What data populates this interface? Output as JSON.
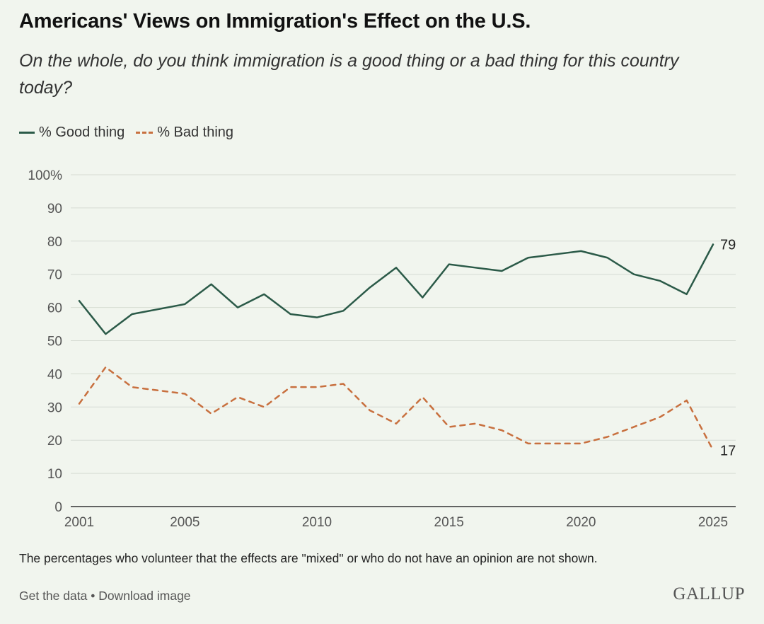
{
  "header": {
    "title": "Americans' Views on Immigration's Effect on the U.S.",
    "subtitle": "On the whole, do you think immigration is a good thing or a bad thing for this country today?"
  },
  "legend": {
    "good": "% Good thing",
    "bad": "% Bad thing"
  },
  "footer": {
    "note": "The percentages who volunteer that the effects are \"mixed\" or who do not have an opinion are not shown.",
    "get_data": "Get the data",
    "separator": " • ",
    "download": "Download image",
    "brand": "GALLUP"
  },
  "colors": {
    "good": "#2b5a48",
    "bad": "#c8703f",
    "grid": "#d6dcd3",
    "axis": "#333333",
    "tick_text": "#555555"
  },
  "chart_data": {
    "type": "line",
    "x_label": "",
    "y_label": "",
    "xlim": [
      2001,
      2025.5
    ],
    "ylim": [
      0,
      100
    ],
    "x_ticks": [
      2001,
      2005,
      2010,
      2015,
      2020,
      2025
    ],
    "y_ticks": [
      0,
      10,
      20,
      30,
      40,
      50,
      60,
      70,
      80,
      90,
      100
    ],
    "y_tick_labels": [
      "0",
      "10",
      "20",
      "30",
      "40",
      "50",
      "60",
      "70",
      "80",
      "90",
      "100%"
    ],
    "grid": true,
    "legend_position": "top-left",
    "x": [
      2001.5,
      2002.5,
      2003.5,
      2005.5,
      2006.5,
      2007.5,
      2008.5,
      2009.5,
      2010.5,
      2011.5,
      2012.5,
      2013.5,
      2014.5,
      2015.5,
      2016.5,
      2017.5,
      2018.5,
      2019.5,
      2020.5,
      2021.5,
      2022.5,
      2023.5,
      2024.5,
      2025.5
    ],
    "series": [
      {
        "name": "% Good thing",
        "style": "solid",
        "values": [
          62,
          52,
          58,
          61,
          67,
          60,
          64,
          58,
          57,
          59,
          66,
          72,
          63,
          73,
          72,
          71,
          75,
          76,
          77,
          75,
          70,
          68,
          64,
          79
        ],
        "end_label": "79"
      },
      {
        "name": "% Bad thing",
        "style": "dashed",
        "values": [
          31,
          42,
          36,
          34,
          28,
          33,
          30,
          36,
          36,
          37,
          29,
          25,
          33,
          24,
          25,
          23,
          19,
          19,
          19,
          21,
          24,
          27,
          32,
          17
        ],
        "end_label": "17"
      }
    ]
  }
}
